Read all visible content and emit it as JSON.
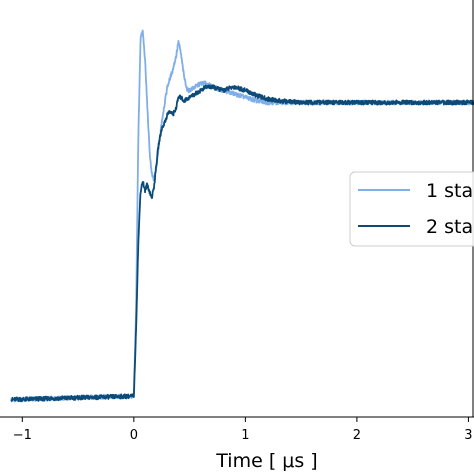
{
  "chart_data": {
    "type": "line",
    "xlabel": "Time [ μs ]",
    "ylabel": "",
    "title": "",
    "xlim": [
      -1.2,
      3.05
    ],
    "ylim": [
      -0.05,
      1.15
    ],
    "xticks": [
      -1,
      0,
      1,
      2,
      3
    ],
    "xtick_labels": [
      "−1",
      "0",
      "1",
      "2",
      "3"
    ],
    "grid": false,
    "legend": {
      "placement": "center-right",
      "entries": [
        "1 sta",
        "2 sta"
      ]
    },
    "series": [
      {
        "name": "1 sta",
        "color": "#7faee8",
        "x": [
          -1.1,
          0.0,
          0.02,
          0.04,
          0.06,
          0.08,
          0.1,
          0.12,
          0.14,
          0.16,
          0.18,
          0.2,
          0.22,
          0.25,
          0.28,
          0.3,
          0.32,
          0.35,
          0.38,
          0.4,
          0.42,
          0.45,
          0.48,
          0.5,
          0.55,
          0.6,
          0.65,
          0.7,
          0.8,
          0.9,
          1.0,
          1.1,
          1.2,
          1.3,
          1.5,
          2.0,
          2.5,
          3.05
        ],
        "y": [
          0.0,
          0.01,
          0.25,
          0.75,
          1.04,
          1.06,
          0.98,
          0.85,
          0.72,
          0.65,
          0.63,
          0.66,
          0.72,
          0.8,
          0.86,
          0.9,
          0.92,
          0.95,
          0.99,
          1.03,
          1.0,
          0.93,
          0.89,
          0.89,
          0.9,
          0.91,
          0.91,
          0.9,
          0.89,
          0.88,
          0.87,
          0.86,
          0.855,
          0.855,
          0.855,
          0.855,
          0.855,
          0.855
        ]
      },
      {
        "name": "2 sta",
        "color": "#0c4a78",
        "x": [
          -1.1,
          0.0,
          0.02,
          0.04,
          0.06,
          0.08,
          0.1,
          0.12,
          0.14,
          0.16,
          0.18,
          0.2,
          0.22,
          0.25,
          0.28,
          0.3,
          0.32,
          0.35,
          0.38,
          0.4,
          0.42,
          0.45,
          0.5,
          0.55,
          0.6,
          0.65,
          0.7,
          0.8,
          0.9,
          1.0,
          1.1,
          1.2,
          1.3,
          1.5,
          2.0,
          2.5,
          3.05
        ],
        "y": [
          0.0,
          0.01,
          0.2,
          0.45,
          0.6,
          0.63,
          0.6,
          0.62,
          0.6,
          0.58,
          0.61,
          0.67,
          0.73,
          0.78,
          0.8,
          0.82,
          0.83,
          0.82,
          0.84,
          0.87,
          0.87,
          0.86,
          0.87,
          0.88,
          0.89,
          0.9,
          0.9,
          0.89,
          0.9,
          0.89,
          0.875,
          0.865,
          0.86,
          0.855,
          0.855,
          0.855,
          0.855
        ]
      }
    ]
  }
}
